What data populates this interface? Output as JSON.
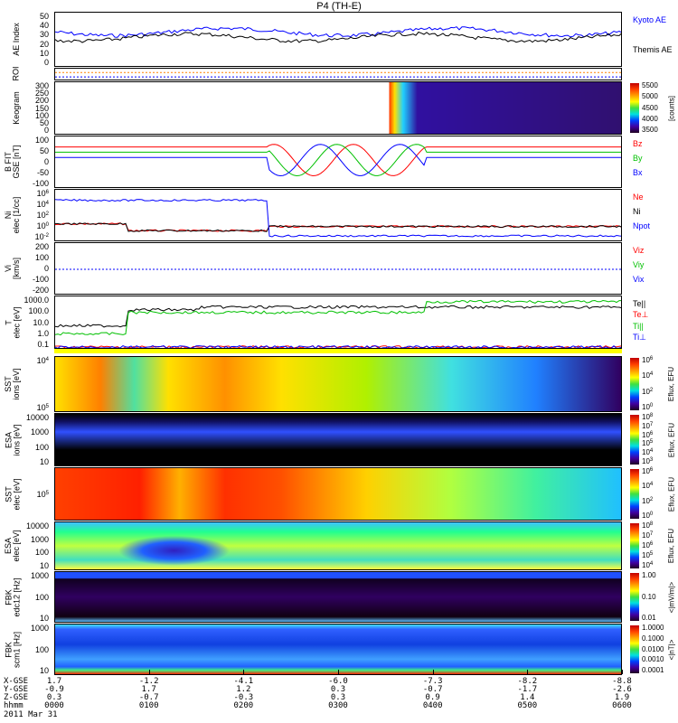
{
  "title": "P4 (TH-E)",
  "chart_data": [
    {
      "type": "line",
      "ylabel": "AE Index",
      "yticks": [
        "50",
        "40",
        "30",
        "20",
        "10",
        "0"
      ],
      "ylim": [
        0,
        50
      ],
      "legend": [
        "Kyoto AE",
        "Themis AE"
      ],
      "colors": [
        "#0000ff",
        "#000000"
      ]
    },
    {
      "type": "line",
      "ylabel": "ROI"
    },
    {
      "type": "heatmap",
      "ylabel": "Keogram",
      "yticks": [
        "300",
        "250",
        "200",
        "150",
        "100",
        "50",
        "0"
      ],
      "ylim": [
        0,
        300
      ],
      "colorbar": {
        "ticks": [
          "5500",
          "5000",
          "4500",
          "4000",
          "3500"
        ],
        "unit": "[counts]"
      }
    },
    {
      "type": "line",
      "ylabel": "B FIT",
      "yunits": "GSE [nT]",
      "yticks": [
        "100",
        "50",
        "0",
        "-50",
        "-100"
      ],
      "ylim": [
        -100,
        100
      ],
      "legend": [
        "Bz",
        "By",
        "Bx"
      ],
      "colors": [
        "#ff0000",
        "#00c000",
        "#0000ff"
      ]
    },
    {
      "type": "line",
      "ylabel": "Ni",
      "yunits": "elec [1/cc]",
      "yticks": [
        "10^6",
        "10^4",
        "10^2",
        "10^0",
        "10^-2"
      ],
      "legend": [
        "Ne",
        "Ni",
        "Npot"
      ],
      "colors": [
        "#ff0000",
        "#000000",
        "#0000ff"
      ]
    },
    {
      "type": "line",
      "ylabel": "Vi",
      "yunits": "[km/s]",
      "yticks": [
        "200",
        "100",
        "0",
        "-100",
        "-200"
      ],
      "ylim": [
        -300,
        300
      ],
      "legend": [
        "Viz",
        "Viy",
        "Vix"
      ],
      "colors": [
        "#ff0000",
        "#00c000",
        "#0000ff"
      ]
    },
    {
      "type": "line",
      "ylabel": "T",
      "yunits": "elec [eV]",
      "yticks": [
        "1000.0",
        "100.0",
        "10.0",
        "1.0",
        "0.1"
      ],
      "legend": [
        "Te||",
        "Te⊥",
        "Ti||",
        "Ti⊥"
      ],
      "colors": [
        "#000000",
        "#ff0000",
        "#00c000",
        "#0000ff"
      ]
    },
    {
      "type": "heatmap",
      "ylabel": "SST",
      "yunits": "ions [eV]",
      "yticks": [
        "10^4",
        "10^5"
      ],
      "colorbar": {
        "ticks": [
          "10^6",
          "10^4",
          "10^2",
          "10^0"
        ],
        "unit": "Eflux, EFU"
      }
    },
    {
      "type": "heatmap",
      "ylabel": "ESA",
      "yunits": "ions [eV]",
      "yticks": [
        "10000",
        "1000",
        "100",
        "10"
      ],
      "colorbar": {
        "ticks": [
          "10^8",
          "10^7",
          "10^6",
          "10^5",
          "10^4",
          "10^3"
        ],
        "unit": "Eflux, EFU"
      }
    },
    {
      "type": "heatmap",
      "ylabel": "SST",
      "yunits": "elec [eV]",
      "yticks": [
        "10^5"
      ],
      "colorbar": {
        "ticks": [
          "10^6",
          "10^4",
          "10^2",
          "10^0"
        ],
        "unit": "Eflux, EFU"
      }
    },
    {
      "type": "heatmap",
      "ylabel": "ESA",
      "yunits": "elec [eV]",
      "yticks": [
        "10000",
        "1000",
        "100",
        "10"
      ],
      "colorbar": {
        "ticks": [
          "10^8",
          "10^7",
          "10^6",
          "10^5",
          "10^4"
        ],
        "unit": "Eflux, EFU"
      }
    },
    {
      "type": "heatmap",
      "ylabel": "FBK",
      "yunits": "edc12 [Hz]",
      "yticks": [
        "1000",
        "100",
        "10"
      ],
      "colorbar": {
        "ticks": [
          "1.00",
          "0.10",
          "0.01"
        ],
        "unit": "<|mV/m|>"
      }
    },
    {
      "type": "heatmap",
      "ylabel": "FBK",
      "yunits": "scm1 [Hz]",
      "yticks": [
        "1000",
        "100",
        "10"
      ],
      "colorbar": {
        "ticks": [
          "1.0000",
          "0.1000",
          "0.0100",
          "0.0010",
          "0.0001"
        ],
        "unit": "<|nT|>"
      }
    }
  ],
  "xaxis": {
    "row_labels": [
      "X-GSE",
      "Y-GSE",
      "Z-GSE",
      "hhmm"
    ],
    "date": "2011 Mar 31",
    "columns": [
      {
        "x": "1.7",
        "y": "-0.9",
        "z": "0.3",
        "t": "0000"
      },
      {
        "x": "-1.2",
        "y": "1.7",
        "z": "-0.7",
        "t": "0100"
      },
      {
        "x": "-4.1",
        "y": "1.2",
        "z": "-0.3",
        "t": "0200"
      },
      {
        "x": "-6.0",
        "y": "0.3",
        "z": "0.3",
        "t": "0300"
      },
      {
        "x": "-7.3",
        "y": "-0.7",
        "z": "0.9",
        "t": "0400"
      },
      {
        "x": "-8.2",
        "y": "-1.7",
        "z": "1.4",
        "t": "0500"
      },
      {
        "x": "-8.8",
        "y": "-2.6",
        "z": "1.9",
        "t": "0600"
      }
    ]
  }
}
